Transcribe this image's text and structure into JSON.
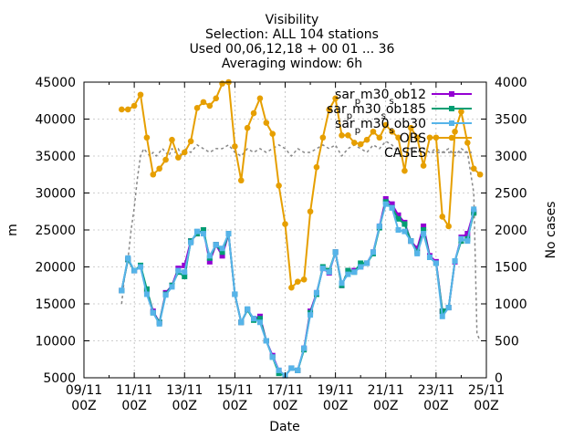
{
  "chart_data": {
    "type": "line",
    "title_lines": [
      "Visibility",
      "Selection: ALL     104 stations",
      "Used 00,06,12,18 + 00 01 ... 36",
      "Averaging window:  6h"
    ],
    "xlabel": "Date",
    "ylabel": "m",
    "y2label": "No cases",
    "xlim": [
      0,
      16
    ],
    "ylim": [
      5000,
      45000
    ],
    "y2lim": [
      0,
      4000
    ],
    "x_ticks": [
      {
        "v": 0,
        "l1": "09/11",
        "l2": "00Z"
      },
      {
        "v": 2,
        "l1": "11/11",
        "l2": "00Z"
      },
      {
        "v": 4,
        "l1": "13/11",
        "l2": "00Z"
      },
      {
        "v": 6,
        "l1": "15/11",
        "l2": "00Z"
      },
      {
        "v": 8,
        "l1": "17/11",
        "l2": "00Z"
      },
      {
        "v": 10,
        "l1": "19/11",
        "l2": "00Z"
      },
      {
        "v": 12,
        "l1": "21/11",
        "l2": "00Z"
      },
      {
        "v": 14,
        "l1": "23/11",
        "l2": "00Z"
      },
      {
        "v": 16,
        "l1": "25/11",
        "l2": "00Z"
      }
    ],
    "y_ticks": [
      {
        "v": 5000,
        "l": "5000"
      },
      {
        "v": 10000,
        "l": "10000"
      },
      {
        "v": 15000,
        "l": "15000"
      },
      {
        "v": 20000,
        "l": "20000"
      },
      {
        "v": 25000,
        "l": "25000"
      },
      {
        "v": 30000,
        "l": "30000"
      },
      {
        "v": 35000,
        "l": "35000"
      },
      {
        "v": 40000,
        "l": "40000"
      },
      {
        "v": 45000,
        "l": "45000"
      }
    ],
    "y2_ticks": [
      {
        "v": 0,
        "l": "0"
      },
      {
        "v": 500,
        "l": "500"
      },
      {
        "v": 1000,
        "l": "1000"
      },
      {
        "v": 1500,
        "l": "1500"
      },
      {
        "v": 2000,
        "l": "2000"
      },
      {
        "v": 2500,
        "l": "2500"
      },
      {
        "v": 3000,
        "l": "3000"
      },
      {
        "v": 3500,
        "l": "3500"
      },
      {
        "v": 4000,
        "l": "4000"
      }
    ],
    "grid": true,
    "legend_position": "top-right",
    "series": [
      {
        "name_parts": [
          {
            "t": "sar"
          },
          {
            "t": "p",
            "sub": true
          },
          {
            "t": "m30"
          },
          {
            "t": "s",
            "sub": true
          },
          {
            "t": "ob12"
          }
        ],
        "color": "#9400d3",
        "marker": "square",
        "axis": "y",
        "x": [
          1.5,
          1.75,
          2.0,
          2.25,
          2.5,
          2.75,
          3.0,
          3.25,
          3.5,
          3.75,
          4.0,
          4.25,
          4.5,
          4.75,
          5.0,
          5.25,
          5.5,
          5.75,
          6.0,
          6.25,
          6.5,
          6.75,
          7.0,
          7.25,
          7.5,
          7.75,
          8.0,
          8.25,
          8.5,
          8.75,
          9.0,
          9.25,
          9.5,
          9.75,
          10.0,
          10.25,
          10.5,
          10.75,
          11.0,
          11.25,
          11.5,
          11.75,
          12.0,
          12.25,
          12.5,
          12.75,
          13.0,
          13.25,
          13.5,
          13.75,
          14.0,
          14.25,
          14.5,
          14.75,
          15.0,
          15.25,
          15.5,
          15.75
        ],
        "values": [
          16800,
          21000,
          19500,
          20000,
          16800,
          14000,
          12500,
          16500,
          17500,
          19800,
          20200,
          23500,
          24500,
          25000,
          20700,
          23000,
          21500,
          24500,
          16300,
          12500,
          14200,
          13000,
          13300,
          10000,
          8000,
          6000,
          5300,
          6300,
          6000,
          9000,
          14000,
          16500,
          19800,
          19200,
          22000,
          17500,
          19500,
          19500,
          20000,
          20500,
          22000,
          25500,
          29200,
          28500,
          27000,
          26000,
          23500,
          22500,
          25500,
          21500,
          20700,
          14000,
          14500,
          20700,
          24000,
          24500,
          27500,
          0
        ],
        "visible_count": 57
      },
      {
        "name_parts": [
          {
            "t": "sar"
          },
          {
            "t": "p",
            "sub": true
          },
          {
            "t": "m30"
          },
          {
            "t": "s",
            "sub": true
          },
          {
            "t": "ob185"
          }
        ],
        "color": "#009e73",
        "marker": "square",
        "axis": "y",
        "x": [
          1.5,
          1.75,
          2.0,
          2.25,
          2.5,
          2.75,
          3.0,
          3.25,
          3.5,
          3.75,
          4.0,
          4.25,
          4.5,
          4.75,
          5.0,
          5.25,
          5.5,
          5.75,
          6.0,
          6.25,
          6.5,
          6.75,
          7.0,
          7.25,
          7.5,
          7.75,
          8.0,
          8.25,
          8.5,
          8.75,
          9.0,
          9.25,
          9.5,
          9.75,
          10.0,
          10.25,
          10.5,
          10.75,
          11.0,
          11.25,
          11.5,
          11.75,
          12.0,
          12.25,
          12.5,
          12.75,
          13.0,
          13.25,
          13.5,
          13.75,
          14.0,
          14.25,
          14.5,
          14.75,
          15.0,
          15.25,
          15.5
        ],
        "values": [
          16800,
          21000,
          19500,
          20200,
          17000,
          13800,
          12500,
          16300,
          17500,
          19300,
          18700,
          23500,
          24500,
          25000,
          21200,
          23000,
          22000,
          24500,
          16300,
          12500,
          14200,
          12800,
          13000,
          10000,
          7800,
          5600,
          5300,
          6300,
          6000,
          8800,
          13800,
          16300,
          20000,
          19500,
          22000,
          17500,
          19500,
          19300,
          20500,
          20500,
          21800,
          25300,
          28800,
          28000,
          26500,
          25800,
          23500,
          22000,
          25000,
          21300,
          20500,
          14000,
          14500,
          20800,
          23500,
          23800,
          27300
        ],
        "visible_count": 57
      },
      {
        "name_parts": [
          {
            "t": "sar"
          },
          {
            "t": "p",
            "sub": true
          },
          {
            "t": "m30"
          },
          {
            "t": "s",
            "sub": true
          },
          {
            "t": "ob30"
          }
        ],
        "color": "#56b4e9",
        "marker": "square",
        "axis": "y",
        "x": [
          1.5,
          1.75,
          2.0,
          2.25,
          2.5,
          2.75,
          3.0,
          3.25,
          3.5,
          3.75,
          4.0,
          4.25,
          4.5,
          4.75,
          5.0,
          5.25,
          5.5,
          5.75,
          6.0,
          6.25,
          6.5,
          6.75,
          7.0,
          7.25,
          7.5,
          7.75,
          8.0,
          8.25,
          8.5,
          8.75,
          9.0,
          9.25,
          9.5,
          9.75,
          10.0,
          10.25,
          10.5,
          10.75,
          11.0,
          11.25,
          11.5,
          11.75,
          12.0,
          12.25,
          12.5,
          12.75,
          13.0,
          13.25,
          13.5,
          13.75,
          14.0,
          14.25,
          14.5,
          14.75,
          15.0,
          15.25,
          15.5
        ],
        "values": [
          16800,
          21200,
          19500,
          20000,
          16300,
          13800,
          12300,
          16200,
          17300,
          19500,
          19300,
          23300,
          24800,
          24500,
          21500,
          23000,
          22500,
          24500,
          16300,
          12500,
          14300,
          13000,
          12500,
          10000,
          7800,
          6000,
          5300,
          6300,
          6000,
          9000,
          13500,
          16500,
          19800,
          19300,
          22000,
          17800,
          19000,
          19300,
          20000,
          20500,
          22000,
          25500,
          28500,
          28000,
          25000,
          24800,
          23500,
          21800,
          24500,
          21300,
          20500,
          13300,
          14500,
          20800,
          23800,
          23500,
          27800
        ],
        "visible_count": 57
      },
      {
        "name_parts": [
          {
            "t": "OBS"
          }
        ],
        "color": "#e69f00",
        "marker": "circle",
        "axis": "y",
        "x": [
          1.5,
          1.75,
          2.0,
          2.25,
          2.5,
          2.75,
          3.0,
          3.25,
          3.5,
          3.75,
          4.0,
          4.25,
          4.5,
          4.75,
          5.0,
          5.25,
          5.5,
          5.75,
          6.0,
          6.25,
          6.5,
          6.75,
          7.0,
          7.25,
          7.5,
          7.75,
          8.0,
          8.25,
          8.5,
          8.75,
          9.0,
          9.25,
          9.5,
          9.75,
          10.0,
          10.25,
          10.5,
          10.75,
          11.0,
          11.25,
          11.5,
          11.75,
          12.0,
          12.25,
          12.5,
          12.75,
          13.0,
          13.25,
          13.5,
          13.75,
          14.0,
          14.25,
          14.5,
          14.75,
          15.0,
          15.25,
          15.5,
          15.75
        ],
        "values": [
          41300,
          41300,
          41800,
          43300,
          37500,
          32500,
          33300,
          34500,
          37200,
          34800,
          35500,
          37000,
          41500,
          42300,
          41800,
          42800,
          44800,
          45000,
          36300,
          31700,
          38800,
          40800,
          42800,
          39500,
          38000,
          31000,
          25800,
          17200,
          18000,
          18300,
          27500,
          33500,
          37500,
          41300,
          42800,
          37800,
          37800,
          36800,
          36600,
          37200,
          38300,
          37500,
          39200,
          38300,
          37500,
          33000,
          38800,
          37500,
          33700,
          37500,
          37500,
          26800,
          25500,
          38300,
          41000,
          36800,
          33300,
          32500
        ],
        "visible_count": 58
      },
      {
        "name_parts": [
          {
            "t": "CASES"
          }
        ],
        "color": "#888888",
        "marker": "none",
        "axis": "y2",
        "dashed": true,
        "x": [
          1.5,
          1.625,
          1.75,
          1.875,
          2.0,
          2.125,
          2.25,
          2.375,
          2.5,
          2.625,
          2.75,
          2.875,
          3.0,
          3.125,
          3.25,
          3.375,
          3.5,
          3.625,
          3.75,
          3.875,
          4.0,
          4.25,
          4.5,
          4.75,
          5.0,
          5.25,
          5.5,
          5.75,
          6.0,
          6.25,
          6.5,
          6.75,
          7.0,
          7.25,
          7.5,
          7.75,
          8.0,
          8.25,
          8.5,
          8.75,
          9.0,
          9.25,
          9.5,
          9.75,
          10.0,
          10.25,
          10.5,
          10.75,
          11.0,
          11.25,
          11.5,
          11.75,
          12.0,
          12.25,
          12.5,
          12.75,
          13.0,
          13.25,
          13.5,
          13.75,
          14.0,
          14.25,
          14.5,
          14.75,
          15.0,
          15.25,
          15.5,
          15.625,
          15.75
        ],
        "values": [
          1000,
          1400,
          1600,
          2000,
          2300,
          2700,
          3000,
          3100,
          3050,
          3000,
          3050,
          3000,
          3050,
          3100,
          3050,
          3000,
          3100,
          3050,
          3100,
          3000,
          3100,
          3050,
          3150,
          3100,
          3050,
          3100,
          3100,
          3150,
          3050,
          3000,
          3100,
          3050,
          3100,
          3050,
          3100,
          3150,
          3100,
          3000,
          3100,
          3050,
          3050,
          3100,
          3150,
          3100,
          3150,
          3000,
          3100,
          3150,
          3100,
          3050,
          3150,
          3100,
          3200,
          3150,
          3050,
          3100,
          3100,
          3050,
          3100,
          3050,
          3100,
          3050,
          3100,
          3000,
          3100,
          3050,
          2500,
          600,
          500
        ]
      }
    ]
  }
}
